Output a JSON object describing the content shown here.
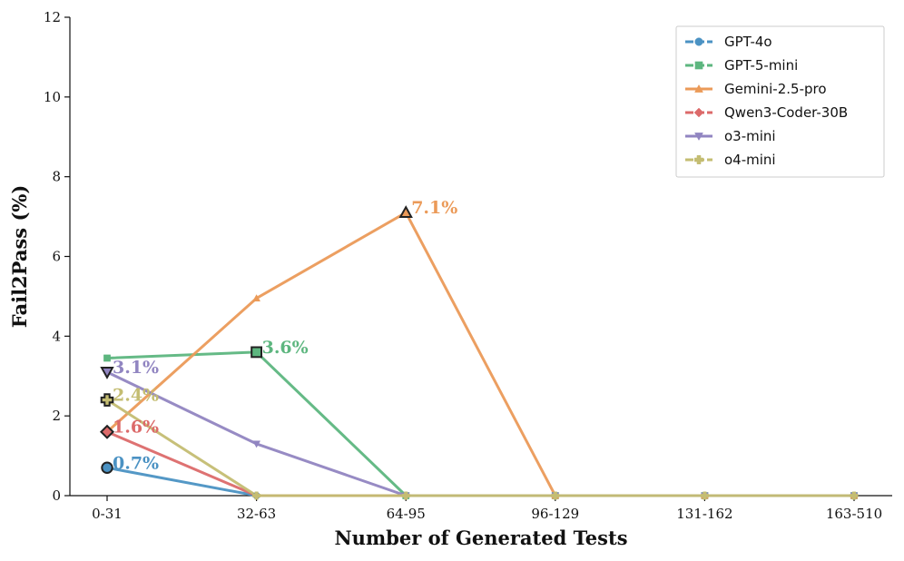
{
  "chart_data": {
    "type": "line",
    "title": "",
    "xlabel": "Number of Generated Tests",
    "ylabel": "Fail2Pass (%)",
    "categories": [
      "0-31",
      "32-63",
      "64-95",
      "96-129",
      "131-162",
      "163-510"
    ],
    "ylim": [
      0,
      12
    ],
    "yticks": [
      0,
      2,
      4,
      6,
      8,
      10,
      12
    ],
    "grid": false,
    "legend_position": "top-right",
    "series": [
      {
        "name": "GPT-4o",
        "color": "#4b92c3",
        "marker": "circle",
        "dashed": true,
        "values": [
          0.7,
          0,
          0,
          0,
          0,
          0
        ],
        "peak_index": 0,
        "peak_label": "0.7%"
      },
      {
        "name": "GPT-5-mini",
        "color": "#5db67f",
        "marker": "square",
        "dashed": true,
        "values": [
          3.45,
          3.6,
          0,
          0,
          0,
          0
        ],
        "peak_index": 1,
        "peak_label": "3.6%"
      },
      {
        "name": "Gemini-2.5-pro",
        "color": "#eb9a58",
        "marker": "triangle-up",
        "dashed": false,
        "values": [
          1.6,
          4.95,
          7.1,
          0,
          0,
          0
        ],
        "peak_index": 2,
        "peak_label": "7.1%"
      },
      {
        "name": "Qwen3-Coder-30B",
        "color": "#dc6a6a",
        "marker": "diamond",
        "dashed": true,
        "values": [
          1.6,
          0,
          0,
          0,
          0,
          0
        ],
        "peak_index": 0,
        "peak_label": "1.6%"
      },
      {
        "name": "o3-mini",
        "color": "#9185c1",
        "marker": "triangle-down",
        "dashed": false,
        "values": [
          3.1,
          1.3,
          0,
          0,
          0,
          0
        ],
        "peak_index": 0,
        "peak_label": "3.1%"
      },
      {
        "name": "o4-mini",
        "color": "#c4bd72",
        "marker": "plus",
        "dashed": true,
        "values": [
          2.4,
          0,
          0,
          0,
          0,
          0
        ],
        "peak_index": 0,
        "peak_label": "2.4%"
      }
    ]
  }
}
